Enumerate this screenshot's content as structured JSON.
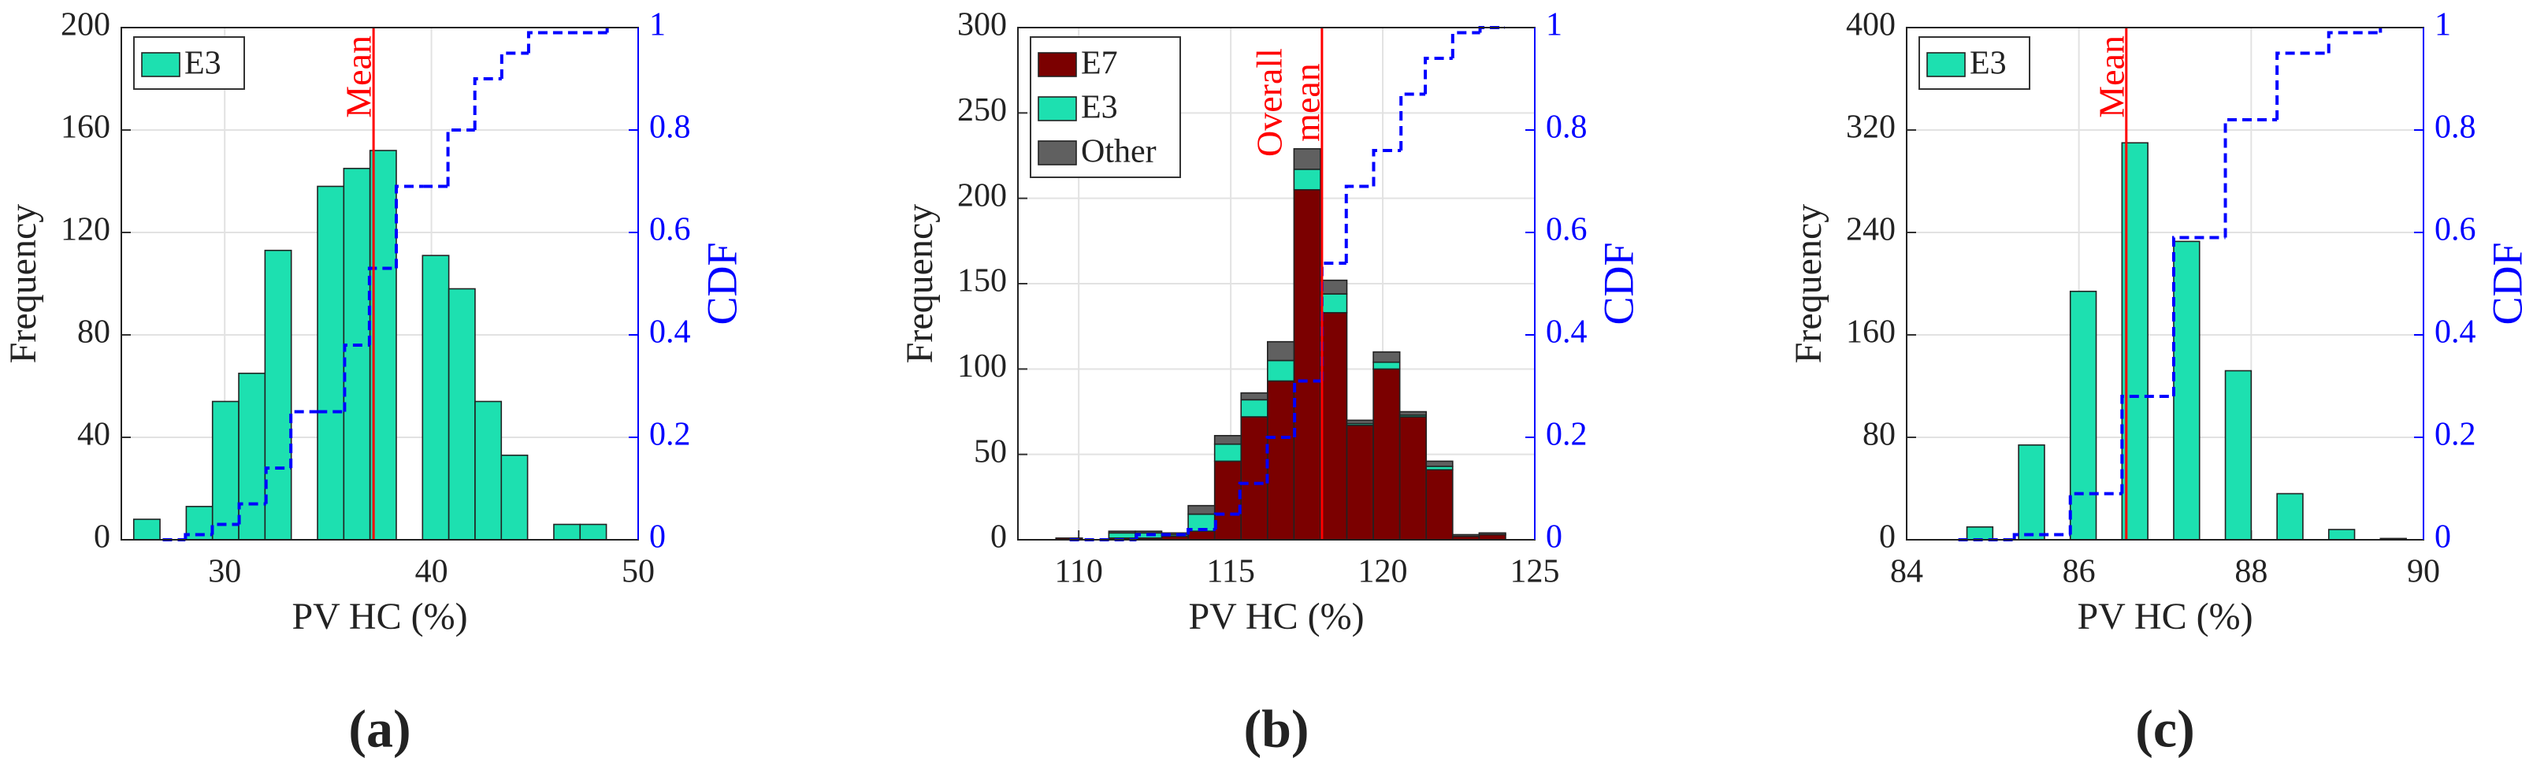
{
  "chart_data": [
    {
      "type": "histogram",
      "panel_label": "(a)",
      "xlabel": "PV HC (%)",
      "ylabel": "Frequency",
      "y2label": "CDF",
      "bins": [
        25.6,
        26.87,
        28.14,
        29.41,
        30.68,
        31.95,
        33.22,
        34.49,
        35.76,
        37.03,
        38.3,
        39.57,
        40.84,
        42.11,
        43.38,
        44.65,
        45.92,
        47.19,
        48.46
      ],
      "series": [
        {
          "name": "E3",
          "color": "#1de0b0",
          "values": [
            8,
            0,
            13,
            54,
            65,
            113,
            0,
            138,
            145,
            152,
            0,
            111,
            98,
            54,
            33,
            0,
            6,
            6
          ]
        }
      ],
      "cdf": {
        "color": "#0000ff",
        "axis": "y2",
        "x": [
          27,
          28.1,
          29.4,
          30.7,
          32,
          33.2,
          34.5,
          35.8,
          37,
          38.3,
          39.6,
          40.8,
          42.1,
          43.4,
          44.7,
          48.5
        ],
        "values": [
          0,
          0.01,
          0.03,
          0.07,
          0.14,
          0.25,
          0.25,
          0.38,
          0.53,
          0.69,
          0.69,
          0.8,
          0.9,
          0.95,
          0.99,
          1
        ]
      },
      "mean": {
        "value": 37.2,
        "label": [
          "Mean"
        ],
        "color": "#ff0000"
      },
      "xlim": [
        25,
        50
      ],
      "xticks": [
        30,
        40,
        50
      ],
      "ylim": [
        0,
        200
      ],
      "yticks": [
        0,
        40,
        80,
        120,
        160,
        200
      ],
      "y2lim": [
        0,
        1
      ],
      "y2ticks": [
        0,
        0.2,
        0.4,
        0.6,
        0.8,
        1
      ],
      "grid": true,
      "legend": "upper left"
    },
    {
      "type": "histogram",
      "panel_label": "(b)",
      "xlabel": "PV HC (%)",
      "ylabel": "Frequency",
      "y2label": "CDF",
      "bins": [
        109.25,
        110.12,
        110.99,
        111.86,
        112.73,
        113.6,
        114.47,
        115.34,
        116.21,
        117.08,
        117.95,
        118.82,
        119.69,
        120.56,
        121.43,
        122.3,
        123.17,
        124.04
      ],
      "series": [
        {
          "name": "E7",
          "color": "#7b0000",
          "values": [
            1,
            0,
            1,
            1,
            2,
            5,
            46,
            72,
            93,
            205,
            133,
            67,
            100,
            72,
            41,
            2,
            3
          ]
        },
        {
          "name": "E3",
          "color": "#1de0b0",
          "values": [
            0,
            0,
            3,
            3,
            1,
            10,
            10,
            10,
            12,
            12,
            11,
            1,
            4,
            1,
            2,
            0,
            0
          ]
        },
        {
          "name": "Other",
          "color": "#606060",
          "values": [
            0,
            0,
            1,
            1,
            1,
            5,
            5,
            4,
            11,
            12,
            8,
            2,
            6,
            2,
            3,
            1,
            1
          ]
        }
      ],
      "cdf": {
        "color": "#0000ff",
        "axis": "y2",
        "x": [
          109.7,
          111.9,
          113.6,
          114.5,
          115.3,
          116.2,
          117.1,
          118,
          118.8,
          119.7,
          120.6,
          121.4,
          122.3,
          123.2,
          124
        ],
        "values": [
          0,
          0.01,
          0.02,
          0.05,
          0.11,
          0.2,
          0.31,
          0.54,
          0.69,
          0.76,
          0.87,
          0.94,
          0.99,
          1,
          1
        ]
      },
      "mean": {
        "value": 118,
        "label": [
          "Overall",
          "mean"
        ],
        "color": "#ff0000"
      },
      "xlim": [
        108,
        125
      ],
      "xticks": [
        110,
        115,
        120,
        125
      ],
      "ylim": [
        0,
        300
      ],
      "yticks": [
        0,
        50,
        100,
        150,
        200,
        250,
        300
      ],
      "y2lim": [
        0,
        1
      ],
      "y2ticks": [
        0,
        0.2,
        0.4,
        0.6,
        0.8,
        1
      ],
      "grid": true,
      "legend": "upper left"
    },
    {
      "type": "histogram",
      "panel_label": "(c)",
      "xlabel": "PV HC (%)",
      "ylabel": "Frequency",
      "y2label": "CDF",
      "bins": [
        84.7,
        85,
        85.3,
        85.6,
        85.9,
        86.2,
        86.5,
        86.8,
        87.1,
        87.4,
        87.7,
        88,
        88.3,
        88.6,
        88.9,
        89.2,
        89.5,
        89.8
      ],
      "series": [
        {
          "name": "E3",
          "color": "#1de0b0",
          "values": [
            10,
            0,
            74,
            0,
            194,
            0,
            310,
            0,
            233,
            0,
            132,
            0,
            36,
            0,
            8,
            0,
            1
          ]
        }
      ],
      "cdf": {
        "color": "#0000ff",
        "axis": "y2",
        "x": [
          84.6,
          85.25,
          85.9,
          86.5,
          87.1,
          87.7,
          88.3,
          88.9,
          89.5
        ],
        "values": [
          0,
          0.01,
          0.09,
          0.28,
          0.59,
          0.82,
          0.95,
          0.99,
          1
        ]
      },
      "mean": {
        "value": 86.55,
        "label": [
          "Mean"
        ],
        "color": "#ff0000"
      },
      "xlim": [
        84,
        90
      ],
      "xticks": [
        84,
        86,
        88,
        90
      ],
      "ylim": [
        0,
        400
      ],
      "yticks": [
        0,
        80,
        160,
        240,
        320,
        400
      ],
      "y2lim": [
        0,
        1
      ],
      "y2ticks": [
        0,
        0.2,
        0.4,
        0.6,
        0.8,
        1
      ],
      "grid": true,
      "legend": "upper left"
    }
  ]
}
